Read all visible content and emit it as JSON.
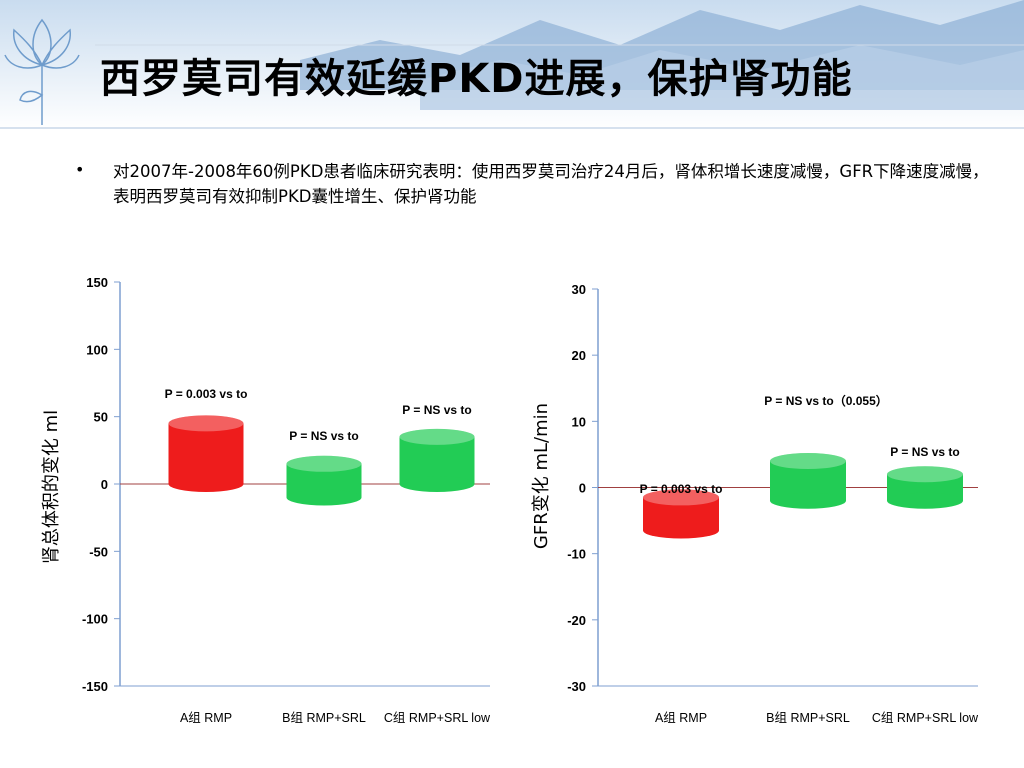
{
  "slide": {
    "title": "西罗莫司有效延缓PKD进展，保护肾功能",
    "bullet": "•",
    "body": "对2007年-2008年60例PKD患者临床研究表明：使用西罗莫司治疗24月后，肾体积增长速度减慢，GFR下降速度减慢，表明西罗莫司有效抑制PKD囊性增生、保护肾功能"
  },
  "colors": {
    "red": "#ee1c1c",
    "green": "#22cc55",
    "zero_line": "#a04040",
    "axis": "#7f9fd0"
  },
  "chart_data": [
    {
      "type": "bar",
      "ylabel": "肾总体积的变化 ml",
      "ylim": [
        -150,
        150
      ],
      "yticks": [
        150,
        100,
        50,
        0,
        -50,
        -100,
        -150
      ],
      "categories": [
        "A组 RMP",
        "B组 RMP+SRL",
        "C组 RMP+SRL low"
      ],
      "values": [
        45,
        15,
        35
      ],
      "bar_bottoms": [
        0,
        -10,
        0
      ],
      "bar_colors": [
        "#ee1c1c",
        "#22cc55",
        "#22cc55"
      ],
      "annotations": [
        "P = 0.003  vs to",
        "P = NS vs to",
        "P = NS vs to"
      ]
    },
    {
      "type": "bar",
      "ylabel": "GFR变化 mL/min",
      "ylim": [
        -30,
        30
      ],
      "yticks": [
        30,
        20,
        10,
        0,
        -10,
        -20,
        -30
      ],
      "categories": [
        "A组 RMP",
        "B组 RMP+SRL",
        "C组 RMP+SRL low"
      ],
      "values": [
        -6.5,
        4,
        2
      ],
      "bar_tops": [
        -1.5,
        4,
        2
      ],
      "bar_bottoms": [
        -6.5,
        -2,
        -2
      ],
      "bar_colors": [
        "#ee1c1c",
        "#22cc55",
        "#22cc55"
      ],
      "annotations": [
        "P = 0.003  vs to",
        "P = NS vs to（0.055）",
        "P = NS vs to"
      ]
    }
  ]
}
